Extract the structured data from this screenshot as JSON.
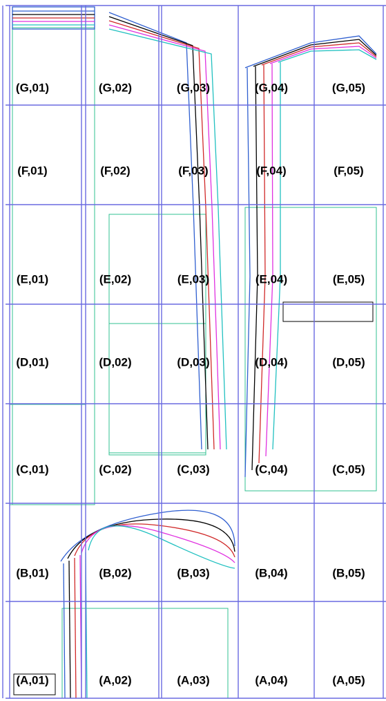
{
  "tiles": [
    [
      "(G,01)",
      "(G,02)",
      "(G,03)",
      "(G,04)",
      "(G,05)"
    ],
    [
      "(F,01)",
      "(F,02)",
      "(F,03)",
      "(F,04)",
      "(F,05)"
    ],
    [
      "(E,01)",
      "(E,02)",
      "(E,03)",
      "(E,04)",
      "(E,05)"
    ],
    [
      "(D,01)",
      "(D,02)",
      "(D,03)",
      "(D,04)",
      "(D,05)"
    ],
    [
      "(C,01)",
      "(C,02)",
      "(C,03)",
      "(C,04)",
      "(C,05)"
    ],
    [
      "(B,01)",
      "(B,02)",
      "(B,03)",
      "(B,04)",
      "(B,05)"
    ],
    [
      "(A,01)",
      "(A,02)",
      "(A,03)",
      "(A,04)",
      "(A,05)"
    ]
  ]
}
